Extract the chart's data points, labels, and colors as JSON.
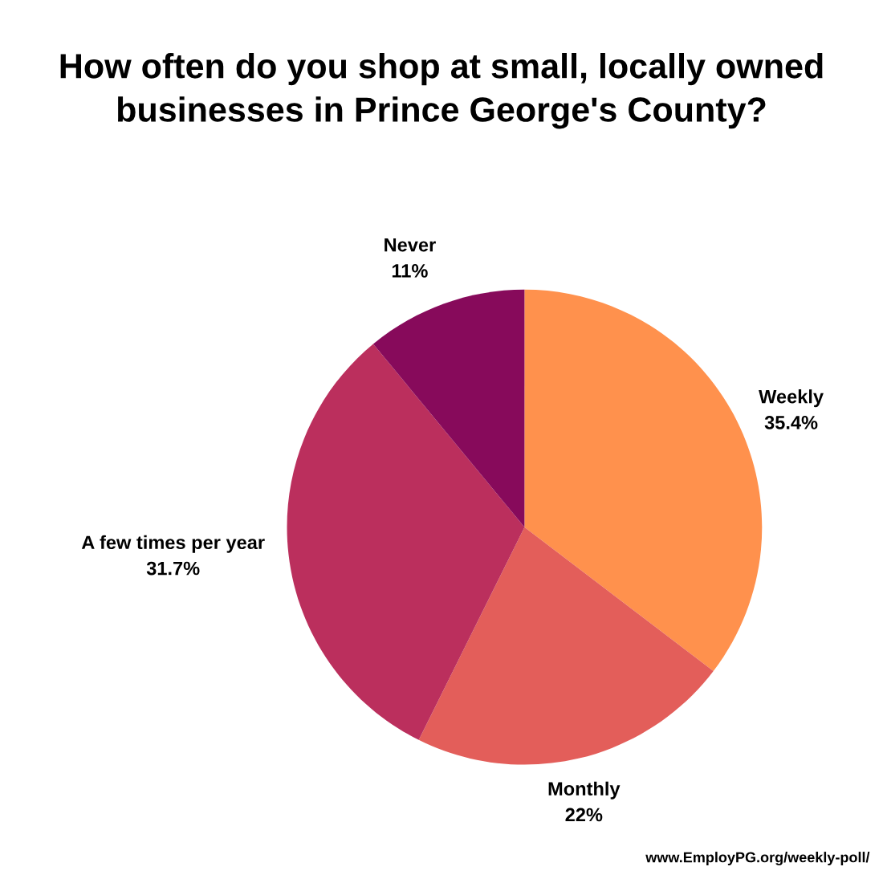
{
  "chart_data": {
    "type": "pie",
    "title": "How often do you shop at small, locally owned businesses in Prince George's County?",
    "categories": [
      "Weekly",
      "Monthly",
      "A few times per year",
      "Never"
    ],
    "values": [
      35.4,
      22,
      31.7,
      11
    ],
    "value_labels": [
      "35.4%",
      "22%",
      "31.7%",
      "11%"
    ],
    "colors": [
      "#ff914d",
      "#e35e5a",
      "#bb2f5d",
      "#870a5b"
    ],
    "annotations": [
      "www.EmployPG.org/weekly-poll/"
    ]
  }
}
